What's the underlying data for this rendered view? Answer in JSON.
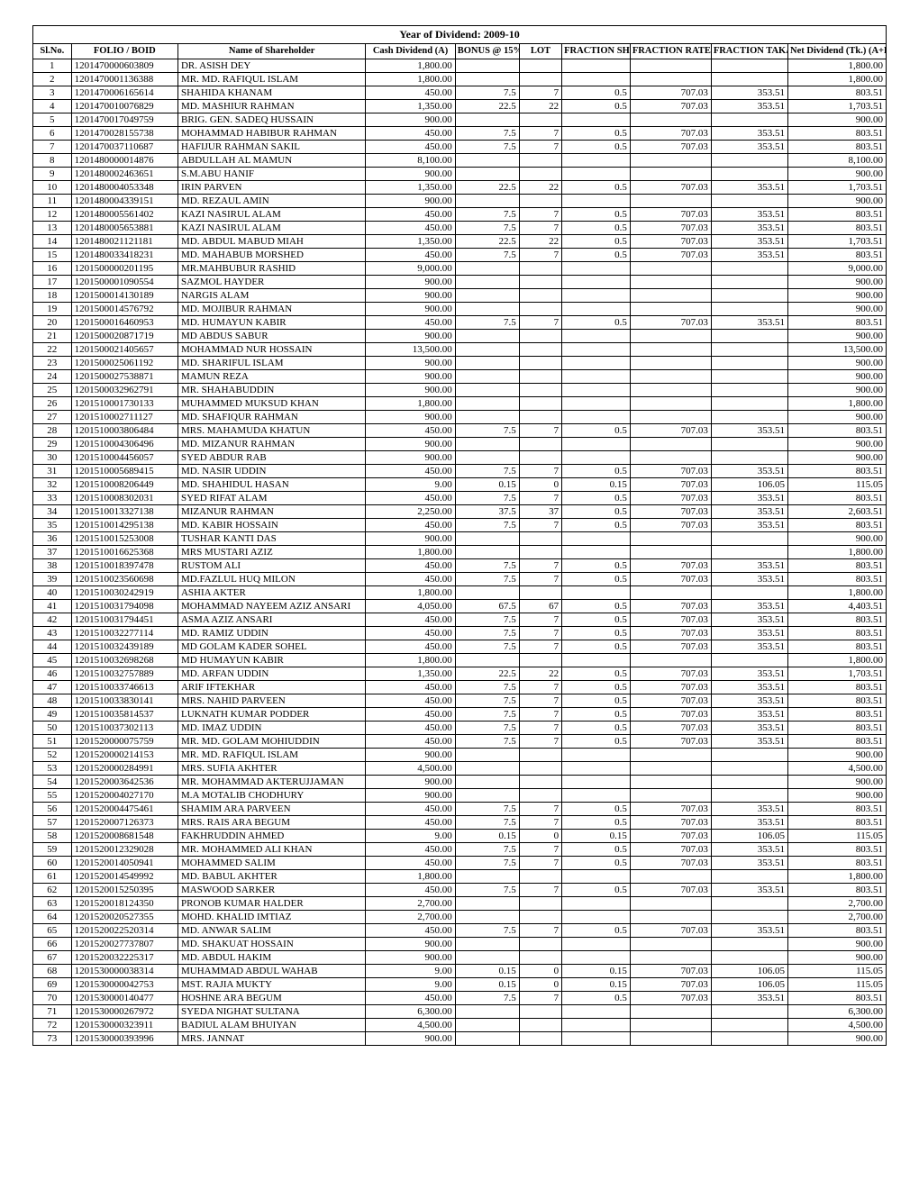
{
  "title": "Year of Dividend: 2009-10",
  "columns": [
    "Sl.No.",
    "FOLIO / BOID",
    "Name of Shareholder",
    "Cash Dividend (A)",
    "BONUS @ 15%",
    "LOT",
    "FRACTION SHARE",
    "FRACTION RATE/SHARE",
    "FRACTION TAKA (B)",
    "Net Dividend (Tk.) (A+B)"
  ],
  "rows": [
    {
      "sl": "1",
      "folio": "1201470000603809",
      "name": "DR. ASISH DEY",
      "cash": "1,800.00",
      "bonus": "",
      "lot": "",
      "fs": "",
      "frs": "",
      "ft": "",
      "net": "1,800.00"
    },
    {
      "sl": "2",
      "folio": "1201470001136388",
      "name": "MR. MD. RAFIQUL ISLAM",
      "cash": "1,800.00",
      "bonus": "",
      "lot": "",
      "fs": "",
      "frs": "",
      "ft": "",
      "net": "1,800.00"
    },
    {
      "sl": "3",
      "folio": "1201470006165614",
      "name": "SHAHIDA KHANAM",
      "cash": "450.00",
      "bonus": "7.5",
      "lot": "7",
      "fs": "0.5",
      "frs": "707.03",
      "ft": "353.51",
      "net": "803.51"
    },
    {
      "sl": "4",
      "folio": "1201470010076829",
      "name": "MD. MASHIUR RAHMAN",
      "cash": "1,350.00",
      "bonus": "22.5",
      "lot": "22",
      "fs": "0.5",
      "frs": "707.03",
      "ft": "353.51",
      "net": "1,703.51"
    },
    {
      "sl": "5",
      "folio": "1201470017049759",
      "name": "BRIG. GEN. SADEQ HUSSAIN",
      "cash": "900.00",
      "bonus": "",
      "lot": "",
      "fs": "",
      "frs": "",
      "ft": "",
      "net": "900.00"
    },
    {
      "sl": "6",
      "folio": "1201470028155738",
      "name": "MOHAMMAD HABIBUR RAHMAN",
      "cash": "450.00",
      "bonus": "7.5",
      "lot": "7",
      "fs": "0.5",
      "frs": "707.03",
      "ft": "353.51",
      "net": "803.51"
    },
    {
      "sl": "7",
      "folio": "1201470037110687",
      "name": "HAFIJUR RAHMAN SAKIL",
      "cash": "450.00",
      "bonus": "7.5",
      "lot": "7",
      "fs": "0.5",
      "frs": "707.03",
      "ft": "353.51",
      "net": "803.51"
    },
    {
      "sl": "8",
      "folio": "1201480000014876",
      "name": "ABDULLAH AL MAMUN",
      "cash": "8,100.00",
      "bonus": "",
      "lot": "",
      "fs": "",
      "frs": "",
      "ft": "",
      "net": "8,100.00"
    },
    {
      "sl": "9",
      "folio": "1201480002463651",
      "name": "S.M.ABU HANIF",
      "cash": "900.00",
      "bonus": "",
      "lot": "",
      "fs": "",
      "frs": "",
      "ft": "",
      "net": "900.00"
    },
    {
      "sl": "10",
      "folio": "1201480004053348",
      "name": "IRIN PARVEN",
      "cash": "1,350.00",
      "bonus": "22.5",
      "lot": "22",
      "fs": "0.5",
      "frs": "707.03",
      "ft": "353.51",
      "net": "1,703.51"
    },
    {
      "sl": "11",
      "folio": "1201480004339151",
      "name": "MD. REZAUL AMIN",
      "cash": "900.00",
      "bonus": "",
      "lot": "",
      "fs": "",
      "frs": "",
      "ft": "",
      "net": "900.00"
    },
    {
      "sl": "12",
      "folio": "1201480005561402",
      "name": "KAZI NASIRUL ALAM",
      "cash": "450.00",
      "bonus": "7.5",
      "lot": "7",
      "fs": "0.5",
      "frs": "707.03",
      "ft": "353.51",
      "net": "803.51"
    },
    {
      "sl": "13",
      "folio": "1201480005653881",
      "name": "KAZI NASIRUL ALAM",
      "cash": "450.00",
      "bonus": "7.5",
      "lot": "7",
      "fs": "0.5",
      "frs": "707.03",
      "ft": "353.51",
      "net": "803.51"
    },
    {
      "sl": "14",
      "folio": "1201480021121181",
      "name": "MD. ABDUL MABUD MIAH",
      "cash": "1,350.00",
      "bonus": "22.5",
      "lot": "22",
      "fs": "0.5",
      "frs": "707.03",
      "ft": "353.51",
      "net": "1,703.51"
    },
    {
      "sl": "15",
      "folio": "1201480033418231",
      "name": "MD. MAHABUB MORSHED",
      "cash": "450.00",
      "bonus": "7.5",
      "lot": "7",
      "fs": "0.5",
      "frs": "707.03",
      "ft": "353.51",
      "net": "803.51"
    },
    {
      "sl": "16",
      "folio": "1201500000201195",
      "name": "MR.MAHBUBUR RASHID",
      "cash": "9,000.00",
      "bonus": "",
      "lot": "",
      "fs": "",
      "frs": "",
      "ft": "",
      "net": "9,000.00"
    },
    {
      "sl": "17",
      "folio": "1201500001090554",
      "name": "SAZMOL HAYDER",
      "cash": "900.00",
      "bonus": "",
      "lot": "",
      "fs": "",
      "frs": "",
      "ft": "",
      "net": "900.00"
    },
    {
      "sl": "18",
      "folio": "1201500014130189",
      "name": "NARGIS ALAM",
      "cash": "900.00",
      "bonus": "",
      "lot": "",
      "fs": "",
      "frs": "",
      "ft": "",
      "net": "900.00"
    },
    {
      "sl": "19",
      "folio": "1201500014576792",
      "name": "MD. MOJIBUR RAHMAN",
      "cash": "900.00",
      "bonus": "",
      "lot": "",
      "fs": "",
      "frs": "",
      "ft": "",
      "net": "900.00"
    },
    {
      "sl": "20",
      "folio": "1201500016460953",
      "name": "MD.  HUMAYUN  KABIR",
      "cash": "450.00",
      "bonus": "7.5",
      "lot": "7",
      "fs": "0.5",
      "frs": "707.03",
      "ft": "353.51",
      "net": "803.51"
    },
    {
      "sl": "21",
      "folio": "1201500020871719",
      "name": "MD ABDUS SABUR",
      "cash": "900.00",
      "bonus": "",
      "lot": "",
      "fs": "",
      "frs": "",
      "ft": "",
      "net": "900.00"
    },
    {
      "sl": "22",
      "folio": "1201500021405657",
      "name": "MOHAMMAD NUR HOSSAIN",
      "cash": "13,500.00",
      "bonus": "",
      "lot": "",
      "fs": "",
      "frs": "",
      "ft": "",
      "net": "13,500.00"
    },
    {
      "sl": "23",
      "folio": "1201500025061192",
      "name": "MD. SHARIFUL ISLAM",
      "cash": "900.00",
      "bonus": "",
      "lot": "",
      "fs": "",
      "frs": "",
      "ft": "",
      "net": "900.00"
    },
    {
      "sl": "24",
      "folio": "1201500027538871",
      "name": "MAMUN REZA",
      "cash": "900.00",
      "bonus": "",
      "lot": "",
      "fs": "",
      "frs": "",
      "ft": "",
      "net": "900.00"
    },
    {
      "sl": "25",
      "folio": "1201500032962791",
      "name": "MR. SHAHABUDDIN",
      "cash": "900.00",
      "bonus": "",
      "lot": "",
      "fs": "",
      "frs": "",
      "ft": "",
      "net": "900.00"
    },
    {
      "sl": "26",
      "folio": "1201510001730133",
      "name": "MUHAMMED MUKSUD KHAN",
      "cash": "1,800.00",
      "bonus": "",
      "lot": "",
      "fs": "",
      "frs": "",
      "ft": "",
      "net": "1,800.00"
    },
    {
      "sl": "27",
      "folio": "1201510002711127",
      "name": "MD. SHAFIQUR RAHMAN",
      "cash": "900.00",
      "bonus": "",
      "lot": "",
      "fs": "",
      "frs": "",
      "ft": "",
      "net": "900.00"
    },
    {
      "sl": "28",
      "folio": "1201510003806484",
      "name": "MRS. MAHAMUDA KHATUN",
      "cash": "450.00",
      "bonus": "7.5",
      "lot": "7",
      "fs": "0.5",
      "frs": "707.03",
      "ft": "353.51",
      "net": "803.51"
    },
    {
      "sl": "29",
      "folio": "1201510004306496",
      "name": "MD. MIZANUR RAHMAN",
      "cash": "900.00",
      "bonus": "",
      "lot": "",
      "fs": "",
      "frs": "",
      "ft": "",
      "net": "900.00"
    },
    {
      "sl": "30",
      "folio": "1201510004456057",
      "name": "SYED ABDUR RAB",
      "cash": "900.00",
      "bonus": "",
      "lot": "",
      "fs": "",
      "frs": "",
      "ft": "",
      "net": "900.00"
    },
    {
      "sl": "31",
      "folio": "1201510005689415",
      "name": "MD. NASIR UDDIN",
      "cash": "450.00",
      "bonus": "7.5",
      "lot": "7",
      "fs": "0.5",
      "frs": "707.03",
      "ft": "353.51",
      "net": "803.51"
    },
    {
      "sl": "32",
      "folio": "1201510008206449",
      "name": "MD. SHAHIDUL HASAN",
      "cash": "9.00",
      "bonus": "0.15",
      "lot": "0",
      "fs": "0.15",
      "frs": "707.03",
      "ft": "106.05",
      "net": "115.05"
    },
    {
      "sl": "33",
      "folio": "1201510008302031",
      "name": "SYED RIFAT ALAM",
      "cash": "450.00",
      "bonus": "7.5",
      "lot": "7",
      "fs": "0.5",
      "frs": "707.03",
      "ft": "353.51",
      "net": "803.51"
    },
    {
      "sl": "34",
      "folio": "1201510013327138",
      "name": "MIZANUR RAHMAN",
      "cash": "2,250.00",
      "bonus": "37.5",
      "lot": "37",
      "fs": "0.5",
      "frs": "707.03",
      "ft": "353.51",
      "net": "2,603.51"
    },
    {
      "sl": "35",
      "folio": "1201510014295138",
      "name": "MD. KABIR HOSSAIN",
      "cash": "450.00",
      "bonus": "7.5",
      "lot": "7",
      "fs": "0.5",
      "frs": "707.03",
      "ft": "353.51",
      "net": "803.51"
    },
    {
      "sl": "36",
      "folio": "1201510015253008",
      "name": "TUSHAR KANTI DAS",
      "cash": "900.00",
      "bonus": "",
      "lot": "",
      "fs": "",
      "frs": "",
      "ft": "",
      "net": "900.00"
    },
    {
      "sl": "37",
      "folio": "1201510016625368",
      "name": "MRS MUSTARI AZIZ",
      "cash": "1,800.00",
      "bonus": "",
      "lot": "",
      "fs": "",
      "frs": "",
      "ft": "",
      "net": "1,800.00"
    },
    {
      "sl": "38",
      "folio": "1201510018397478",
      "name": "RUSTOM ALI",
      "cash": "450.00",
      "bonus": "7.5",
      "lot": "7",
      "fs": "0.5",
      "frs": "707.03",
      "ft": "353.51",
      "net": "803.51"
    },
    {
      "sl": "39",
      "folio": "1201510023560698",
      "name": "MD.FAZLUL  HUQ MILON",
      "cash": "450.00",
      "bonus": "7.5",
      "lot": "7",
      "fs": "0.5",
      "frs": "707.03",
      "ft": "353.51",
      "net": "803.51"
    },
    {
      "sl": "40",
      "folio": "1201510030242919",
      "name": "ASHIA AKTER",
      "cash": "1,800.00",
      "bonus": "",
      "lot": "",
      "fs": "",
      "frs": "",
      "ft": "",
      "net": "1,800.00"
    },
    {
      "sl": "41",
      "folio": "1201510031794098",
      "name": "MOHAMMAD NAYEEM AZIZ ANSARI",
      "cash": "4,050.00",
      "bonus": "67.5",
      "lot": "67",
      "fs": "0.5",
      "frs": "707.03",
      "ft": "353.51",
      "net": "4,403.51"
    },
    {
      "sl": "42",
      "folio": "1201510031794451",
      "name": "ASMA AZIZ ANSARI",
      "cash": "450.00",
      "bonus": "7.5",
      "lot": "7",
      "fs": "0.5",
      "frs": "707.03",
      "ft": "353.51",
      "net": "803.51"
    },
    {
      "sl": "43",
      "folio": "1201510032277114",
      "name": "MD. RAMIZ UDDIN",
      "cash": "450.00",
      "bonus": "7.5",
      "lot": "7",
      "fs": "0.5",
      "frs": "707.03",
      "ft": "353.51",
      "net": "803.51"
    },
    {
      "sl": "44",
      "folio": "1201510032439189",
      "name": "MD GOLAM KADER SOHEL",
      "cash": "450.00",
      "bonus": "7.5",
      "lot": "7",
      "fs": "0.5",
      "frs": "707.03",
      "ft": "353.51",
      "net": "803.51"
    },
    {
      "sl": "45",
      "folio": "1201510032698268",
      "name": "MD HUMAYUN KABIR",
      "cash": "1,800.00",
      "bonus": "",
      "lot": "",
      "fs": "",
      "frs": "",
      "ft": "",
      "net": "1,800.00"
    },
    {
      "sl": "46",
      "folio": "1201510032757889",
      "name": "MD. ARFAN UDDIN",
      "cash": "1,350.00",
      "bonus": "22.5",
      "lot": "22",
      "fs": "0.5",
      "frs": "707.03",
      "ft": "353.51",
      "net": "1,703.51"
    },
    {
      "sl": "47",
      "folio": "1201510033746613",
      "name": "ARIF IFTEKHAR",
      "cash": "450.00",
      "bonus": "7.5",
      "lot": "7",
      "fs": "0.5",
      "frs": "707.03",
      "ft": "353.51",
      "net": "803.51"
    },
    {
      "sl": "48",
      "folio": "1201510033830141",
      "name": "MRS. NAHID PARVEEN",
      "cash": "450.00",
      "bonus": "7.5",
      "lot": "7",
      "fs": "0.5",
      "frs": "707.03",
      "ft": "353.51",
      "net": "803.51"
    },
    {
      "sl": "49",
      "folio": "1201510035814537",
      "name": "LUKNATH KUMAR PODDER",
      "cash": "450.00",
      "bonus": "7.5",
      "lot": "7",
      "fs": "0.5",
      "frs": "707.03",
      "ft": "353.51",
      "net": "803.51"
    },
    {
      "sl": "50",
      "folio": "1201510037302113",
      "name": "MD. IMAZ UDDIN",
      "cash": "450.00",
      "bonus": "7.5",
      "lot": "7",
      "fs": "0.5",
      "frs": "707.03",
      "ft": "353.51",
      "net": "803.51"
    },
    {
      "sl": "51",
      "folio": "1201520000075759",
      "name": "MR. MD. GOLAM MOHIUDDIN",
      "cash": "450.00",
      "bonus": "7.5",
      "lot": "7",
      "fs": "0.5",
      "frs": "707.03",
      "ft": "353.51",
      "net": "803.51"
    },
    {
      "sl": "52",
      "folio": "1201520000214153",
      "name": "MR. MD. RAFIQUL ISLAM",
      "cash": "900.00",
      "bonus": "",
      "lot": "",
      "fs": "",
      "frs": "",
      "ft": "",
      "net": "900.00"
    },
    {
      "sl": "53",
      "folio": "1201520000284991",
      "name": "MRS. SUFIA AKHTER",
      "cash": "4,500.00",
      "bonus": "",
      "lot": "",
      "fs": "",
      "frs": "",
      "ft": "",
      "net": "4,500.00"
    },
    {
      "sl": "54",
      "folio": "1201520003642536",
      "name": "MR. MOHAMMAD AKTERUJJAMAN",
      "cash": "900.00",
      "bonus": "",
      "lot": "",
      "fs": "",
      "frs": "",
      "ft": "",
      "net": "900.00"
    },
    {
      "sl": "55",
      "folio": "1201520004027170",
      "name": "M.A MOTALIB CHODHURY",
      "cash": "900.00",
      "bonus": "",
      "lot": "",
      "fs": "",
      "frs": "",
      "ft": "",
      "net": "900.00"
    },
    {
      "sl": "56",
      "folio": "1201520004475461",
      "name": "SHAMIM ARA PARVEEN",
      "cash": "450.00",
      "bonus": "7.5",
      "lot": "7",
      "fs": "0.5",
      "frs": "707.03",
      "ft": "353.51",
      "net": "803.51"
    },
    {
      "sl": "57",
      "folio": "1201520007126373",
      "name": "MRS. RAIS ARA BEGUM",
      "cash": "450.00",
      "bonus": "7.5",
      "lot": "7",
      "fs": "0.5",
      "frs": "707.03",
      "ft": "353.51",
      "net": "803.51"
    },
    {
      "sl": "58",
      "folio": "1201520008681548",
      "name": "FAKHRUDDIN AHMED",
      "cash": "9.00",
      "bonus": "0.15",
      "lot": "0",
      "fs": "0.15",
      "frs": "707.03",
      "ft": "106.05",
      "net": "115.05"
    },
    {
      "sl": "59",
      "folio": "1201520012329028",
      "name": "MR. MOHAMMED ALI KHAN",
      "cash": "450.00",
      "bonus": "7.5",
      "lot": "7",
      "fs": "0.5",
      "frs": "707.03",
      "ft": "353.51",
      "net": "803.51"
    },
    {
      "sl": "60",
      "folio": "1201520014050941",
      "name": "MOHAMMED SALIM",
      "cash": "450.00",
      "bonus": "7.5",
      "lot": "7",
      "fs": "0.5",
      "frs": "707.03",
      "ft": "353.51",
      "net": "803.51"
    },
    {
      "sl": "61",
      "folio": "1201520014549992",
      "name": "MD. BABUL AKHTER",
      "cash": "1,800.00",
      "bonus": "",
      "lot": "",
      "fs": "",
      "frs": "",
      "ft": "",
      "net": "1,800.00"
    },
    {
      "sl": "62",
      "folio": "1201520015250395",
      "name": "MASWOOD SARKER",
      "cash": "450.00",
      "bonus": "7.5",
      "lot": "7",
      "fs": "0.5",
      "frs": "707.03",
      "ft": "353.51",
      "net": "803.51"
    },
    {
      "sl": "63",
      "folio": "1201520018124350",
      "name": "PRONOB KUMAR HALDER",
      "cash": "2,700.00",
      "bonus": "",
      "lot": "",
      "fs": "",
      "frs": "",
      "ft": "",
      "net": "2,700.00"
    },
    {
      "sl": "64",
      "folio": "1201520020527355",
      "name": "MOHD. KHALID IMTIAZ",
      "cash": "2,700.00",
      "bonus": "",
      "lot": "",
      "fs": "",
      "frs": "",
      "ft": "",
      "net": "2,700.00"
    },
    {
      "sl": "65",
      "folio": "1201520022520314",
      "name": "MD. ANWAR SALIM",
      "cash": "450.00",
      "bonus": "7.5",
      "lot": "7",
      "fs": "0.5",
      "frs": "707.03",
      "ft": "353.51",
      "net": "803.51"
    },
    {
      "sl": "66",
      "folio": "1201520027737807",
      "name": "MD. SHAKUAT HOSSAIN",
      "cash": "900.00",
      "bonus": "",
      "lot": "",
      "fs": "",
      "frs": "",
      "ft": "",
      "net": "900.00"
    },
    {
      "sl": "67",
      "folio": "1201520032225317",
      "name": "MD. ABDUL HAKIM",
      "cash": "900.00",
      "bonus": "",
      "lot": "",
      "fs": "",
      "frs": "",
      "ft": "",
      "net": "900.00"
    },
    {
      "sl": "68",
      "folio": "1201530000038314",
      "name": "MUHAMMAD ABDUL WAHAB",
      "cash": "9.00",
      "bonus": "0.15",
      "lot": "0",
      "fs": "0.15",
      "frs": "707.03",
      "ft": "106.05",
      "net": "115.05"
    },
    {
      "sl": "69",
      "folio": "1201530000042753",
      "name": "MST. RAJIA MUKTY",
      "cash": "9.00",
      "bonus": "0.15",
      "lot": "0",
      "fs": "0.15",
      "frs": "707.03",
      "ft": "106.05",
      "net": "115.05"
    },
    {
      "sl": "70",
      "folio": "1201530000140477",
      "name": "HOSHNE ARA BEGUM",
      "cash": "450.00",
      "bonus": "7.5",
      "lot": "7",
      "fs": "0.5",
      "frs": "707.03",
      "ft": "353.51",
      "net": "803.51"
    },
    {
      "sl": "71",
      "folio": "1201530000267972",
      "name": "SYEDA NIGHAT SULTANA",
      "cash": "6,300.00",
      "bonus": "",
      "lot": "",
      "fs": "",
      "frs": "",
      "ft": "",
      "net": "6,300.00"
    },
    {
      "sl": "72",
      "folio": "1201530000323911",
      "name": "BADIUL ALAM BHUIYAN",
      "cash": "4,500.00",
      "bonus": "",
      "lot": "",
      "fs": "",
      "frs": "",
      "ft": "",
      "net": "4,500.00"
    },
    {
      "sl": "73",
      "folio": "1201530000393996",
      "name": "MRS. JANNAT",
      "cash": "900.00",
      "bonus": "",
      "lot": "",
      "fs": "",
      "frs": "",
      "ft": "",
      "net": "900.00"
    }
  ]
}
